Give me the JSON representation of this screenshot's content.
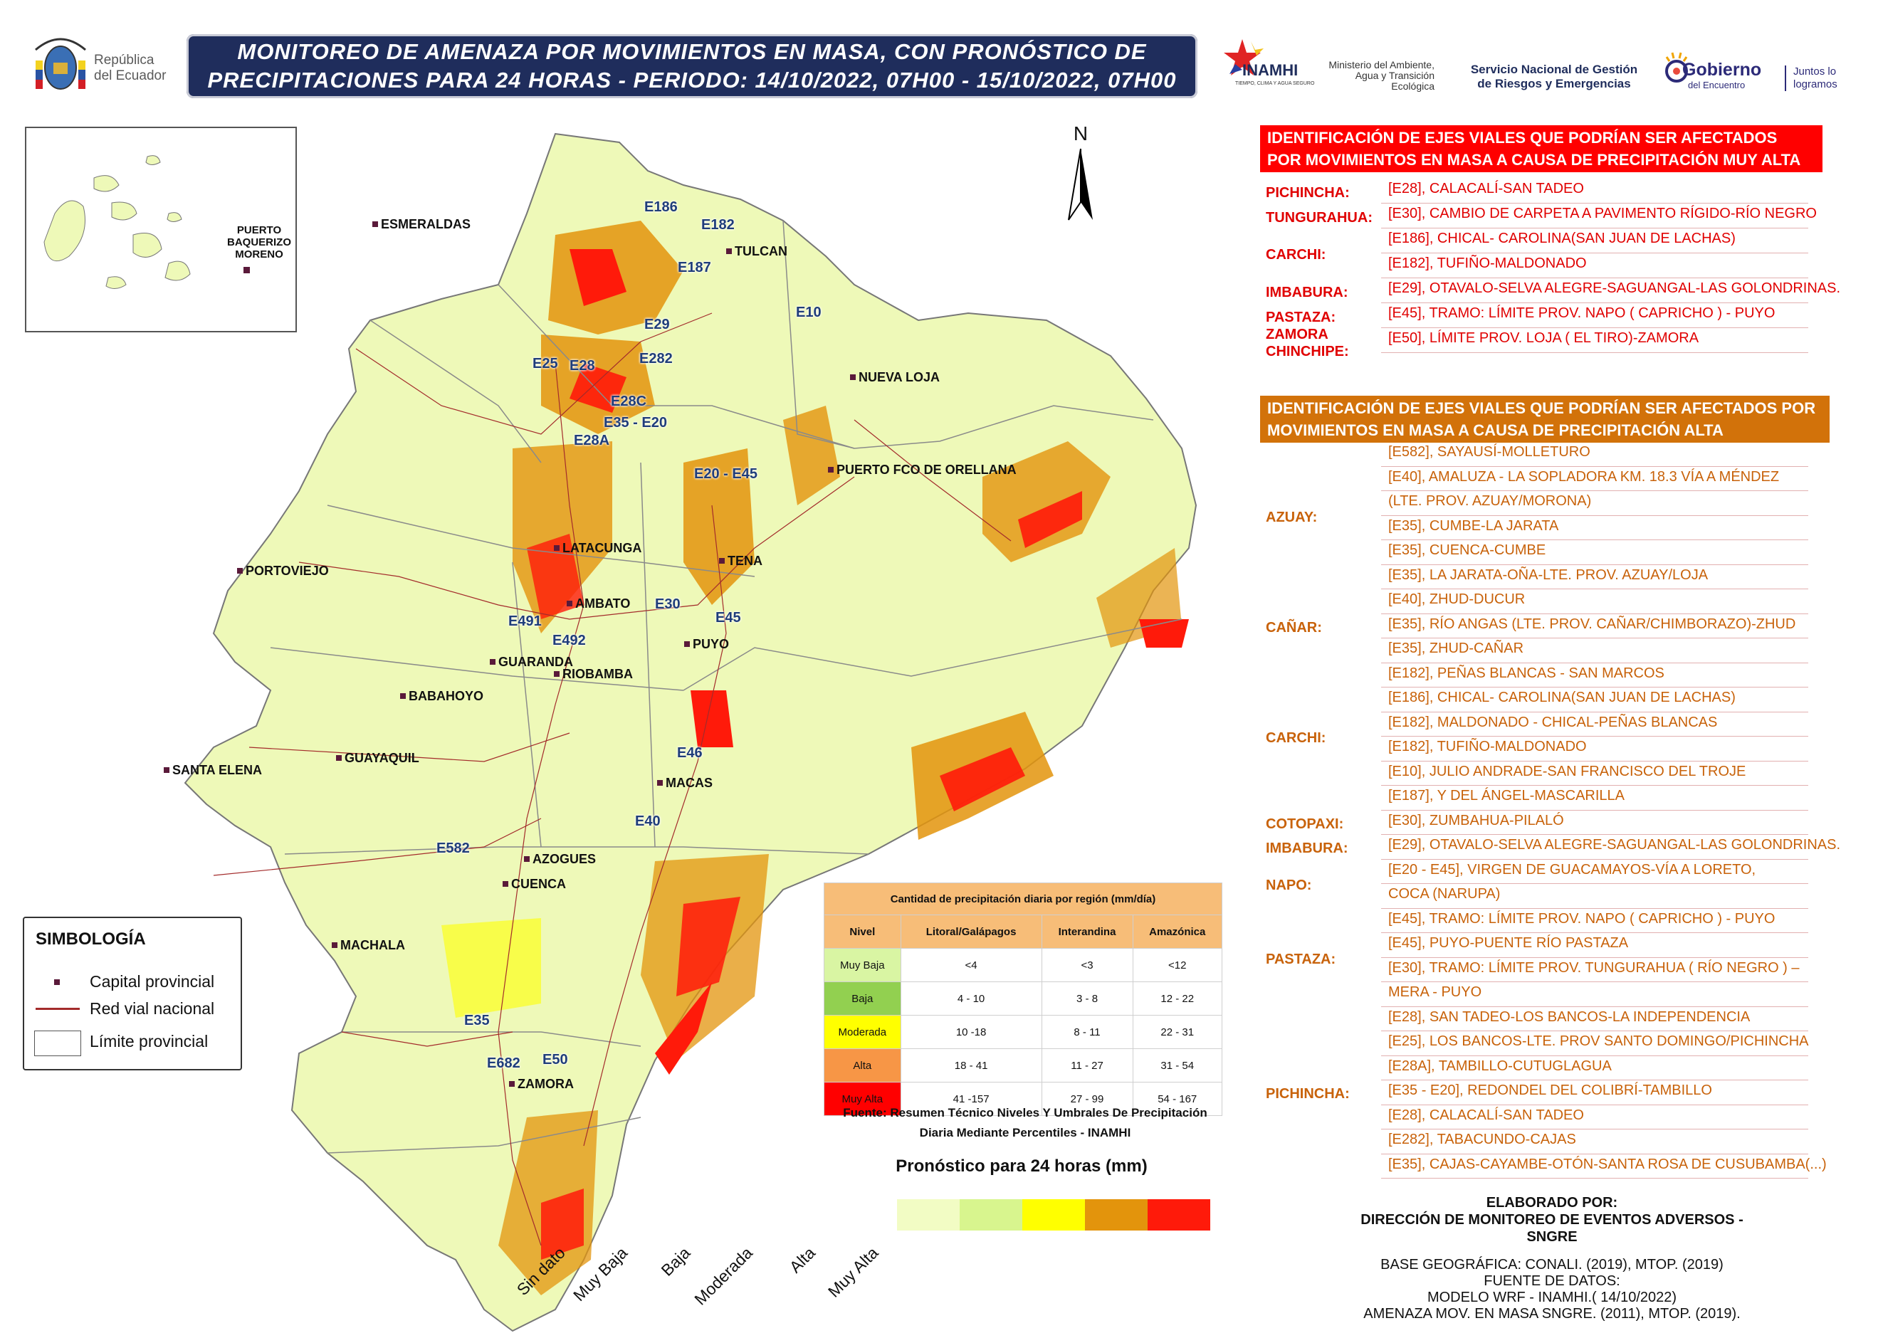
{
  "header": {
    "title_line1": "MONITOREO DE AMENAZA POR MOVIMIENTOS EN MASA, CON PRONÓSTICO DE",
    "title_line2": "PRECIPITACIONES PARA 24 HORAS - PERIODO: 14/10/2022, 07H00 - 15/10/2022, 07H00",
    "republica": "República\ndel Ecuador",
    "inamhi": "INAMHI",
    "inamhi_sub": "TIEMPO, CLIMA Y AGUA SEGURO",
    "ministerio": "Ministerio del Ambiente, Agua y Transición Ecológica",
    "sngre": "Servicio Nacional de Gestión de Riesgos y Emergencias",
    "gobierno": "Gobierno",
    "gobierno_sub": "del Encuentro",
    "juntos": "Juntos lo logramos"
  },
  "map": {
    "north": "N",
    "inset_label": "PUERTO BAQUERIZO MORENO",
    "cities": [
      "ESMERALDAS",
      "TULCAN",
      "NUEVA LOJA",
      "PUERTO FCO DE ORELLANA",
      "LATACUNGA",
      "TENA",
      "PORTOVIEJO",
      "AMBATO",
      "PUYO",
      "GUARANDA",
      "RIOBAMBA",
      "BABAHOYO",
      "SANTA ELENA",
      "GUAYAQUIL",
      "MACAS",
      "AZOGUES",
      "CUENCA",
      "MACHALA",
      "ZAMORA"
    ],
    "roads": [
      "E186",
      "E182",
      "E187",
      "E10",
      "E29",
      "E282",
      "E25",
      "E28",
      "E28C",
      "E35 - E20",
      "E28A",
      "E20 - E45",
      "E30",
      "E45",
      "E491",
      "E492",
      "E46",
      "E40",
      "E582",
      "E35",
      "E682",
      "E50"
    ]
  },
  "simbologia": {
    "title": "SIMBOLOGÍA",
    "capital": "Capital provincial",
    "red_vial": "Red vial nacional",
    "limite": "Límite provincial"
  },
  "muy_alta": {
    "header": "IDENTIFICACIÓN DE EJES VIALES QUE PODRÍAN SER AFECTADOS POR MOVIMIENTOS EN MASA A CAUSA DE  PRECIPITACIÓN MUY ALTA",
    "rows": [
      {
        "prov": "PICHINCHA:",
        "items": [
          "[E28], CALACALÍ-SAN TADEO"
        ]
      },
      {
        "prov": "TUNGURAHUA:",
        "items": [
          "[E30], CAMBIO DE CARPETA A PAVIMENTO RÍGIDO-RÍO NEGRO"
        ]
      },
      {
        "prov": "CARCHI:",
        "items": [
          "[E186], CHICAL- CAROLINA(SAN JUAN DE LACHAS)",
          "[E182], TUFIÑO-MALDONADO"
        ]
      },
      {
        "prov": "IMBABURA:",
        "items": [
          "[E29], OTAVALO-SELVA ALEGRE-SAGUANGAL-LAS GOLONDRINAS."
        ]
      },
      {
        "prov": "PASTAZA:",
        "items": [
          "[E45], TRAMO: LÍMITE PROV. NAPO ( CAPRICHO ) - PUYO"
        ]
      },
      {
        "prov": "ZAMORA CHINCHIPE:",
        "items": [
          "[E50], LÍMITE PROV. LOJA ( EL TIRO)-ZAMORA"
        ]
      }
    ]
  },
  "alta": {
    "header": "IDENTIFICACIÓN DE EJES VIALES QUE PODRÍAN SER AFECTADOS POR MOVIMIENTOS EN MASA A CAUSA DE  PRECIPITACIÓN ALTA",
    "rows": [
      {
        "prov": "AZUAY:",
        "items": [
          "[E582], SAYAUSÍ-MOLLETURO",
          "[E40], AMALUZA - LA SOPLADORA KM. 18.3 VÍA A MÉNDEZ",
          "(LTE. PROV. AZUAY/MORONA)",
          "[E35], CUMBE-LA JARATA",
          "[E35], CUENCA-CUMBE",
          "[E35], LA JARATA-OÑA-LTE. PROV. AZUAY/LOJA"
        ]
      },
      {
        "prov": "CAÑAR:",
        "items": [
          "[E40], ZHUD-DUCUR",
          "[E35], RÍO ANGAS (LTE. PROV. CAÑAR/CHIMBORAZO)-ZHUD",
          "[E35], ZHUD-CAÑAR"
        ]
      },
      {
        "prov": "CARCHI:",
        "items": [
          "[E182], PEÑAS BLANCAS - SAN MARCOS",
          "[E186], CHICAL- CAROLINA(SAN JUAN DE LACHAS)",
          "[E182], MALDONADO - CHICAL-PEÑAS BLANCAS",
          "[E182], TUFIÑO-MALDONADO",
          "[E10], JULIO ANDRADE-SAN FRANCISCO DEL TROJE",
          "[E187], Y DEL ÁNGEL-MASCARILLA"
        ]
      },
      {
        "prov": "COTOPAXI:",
        "items": [
          "[E30], ZUMBAHUA-PILALÓ"
        ]
      },
      {
        "prov": "IMBABURA:",
        "items": [
          "[E29], OTAVALO-SELVA ALEGRE-SAGUANGAL-LAS GOLONDRINAS."
        ]
      },
      {
        "prov": "NAPO:",
        "items": [
          "[E20 - E45], VIRGEN DE GUACAMAYOS-VÍA A LORETO,",
          "COCA (NARUPA)"
        ]
      },
      {
        "prov": "PASTAZA:",
        "items": [
          "[E45], TRAMO: LÍMITE PROV. NAPO ( CAPRICHO ) - PUYO",
          "[E45], PUYO-PUENTE RÍO PASTAZA",
          "[E30], TRAMO: LÍMITE PROV. TUNGURAHUA ( RÍO NEGRO ) –",
          "MERA - PUYO"
        ]
      },
      {
        "prov": "PICHINCHA:",
        "items": [
          "[E28], SAN TADEO-LOS BANCOS-LA INDEPENDENCIA",
          "[E25], LOS BANCOS-LTE. PROV SANTO DOMINGO/PICHINCHA",
          "[E28A], TAMBILLO-CUTUGLAGUA",
          "[E35 - E20], REDONDEL DEL COLIBRÍ-TAMBILLO",
          "[E28], CALACALÍ-SAN TADEO",
          "[E282], TABACUNDO-CAJAS",
          "[E35], CAJAS-CAYAMBE-OTÓN-SANTA ROSA DE CUSUBAMBA(...)"
        ]
      }
    ]
  },
  "precip_table": {
    "caption": "Cantidad de precipitación diaria por región (mm/día)",
    "headers": [
      "Nivel",
      "Litoral/Galápagos",
      "Interandina",
      "Amazónica"
    ],
    "rows": [
      {
        "nivel": "Muy Baja",
        "color": "#d9f5a3",
        "lit": "<4",
        "inter": "<3",
        "ama": "<12"
      },
      {
        "nivel": "Baja",
        "color": "#92d050",
        "lit": "4 - 10",
        "inter": "3 - 8",
        "ama": "12 - 22"
      },
      {
        "nivel": "Moderada",
        "color": "#ffff00",
        "lit": "10 -18",
        "inter": "8 - 11",
        "ama": "22 - 31"
      },
      {
        "nivel": "Alta",
        "color": "#f79646",
        "lit": "18 - 41",
        "inter": "11 - 27",
        "ama": "31 - 54"
      },
      {
        "nivel": "Muy Alta",
        "color": "#ff0000",
        "lit": "41 -157",
        "inter": "27 - 99",
        "ama": "54 - 167"
      }
    ],
    "fuente": "Fuente: Resumen Técnico Niveles Y Umbrales De Precipitación Diaria Mediante Percentiles - INAMHI"
  },
  "forecast_scale": {
    "title": "Pronóstico para 24 horas (mm)",
    "items": [
      {
        "label": "Sin dato",
        "color": "#f2fcc4"
      },
      {
        "label": "Muy Baja",
        "color": "#d8f58e"
      },
      {
        "label": "Baja",
        "color": "#ffff00"
      },
      {
        "label": "Moderada",
        "color": "#e3940c"
      },
      {
        "label": "Alta",
        "color": "#ff1a0a"
      },
      {
        "label": "Muy Alta",
        "color": ""
      }
    ]
  },
  "credits": {
    "elaborado": "ELABORADO POR:",
    "direccion": "DIRECCIÓN DE MONITOREO DE EVENTOS ADVERSOS - SNGRE",
    "base": "BASE GEOGRÁFICA: CONALI. (2019), MTOP. (2019)",
    "fuente_datos": "FUENTE DE DATOS:",
    "modelo": "MODELO WRF - INAMHI.( 14/10/2022)",
    "amenaza": "AMENAZA MOV. EN MASA SNGRE. (2011), MTOP. (2019)."
  }
}
